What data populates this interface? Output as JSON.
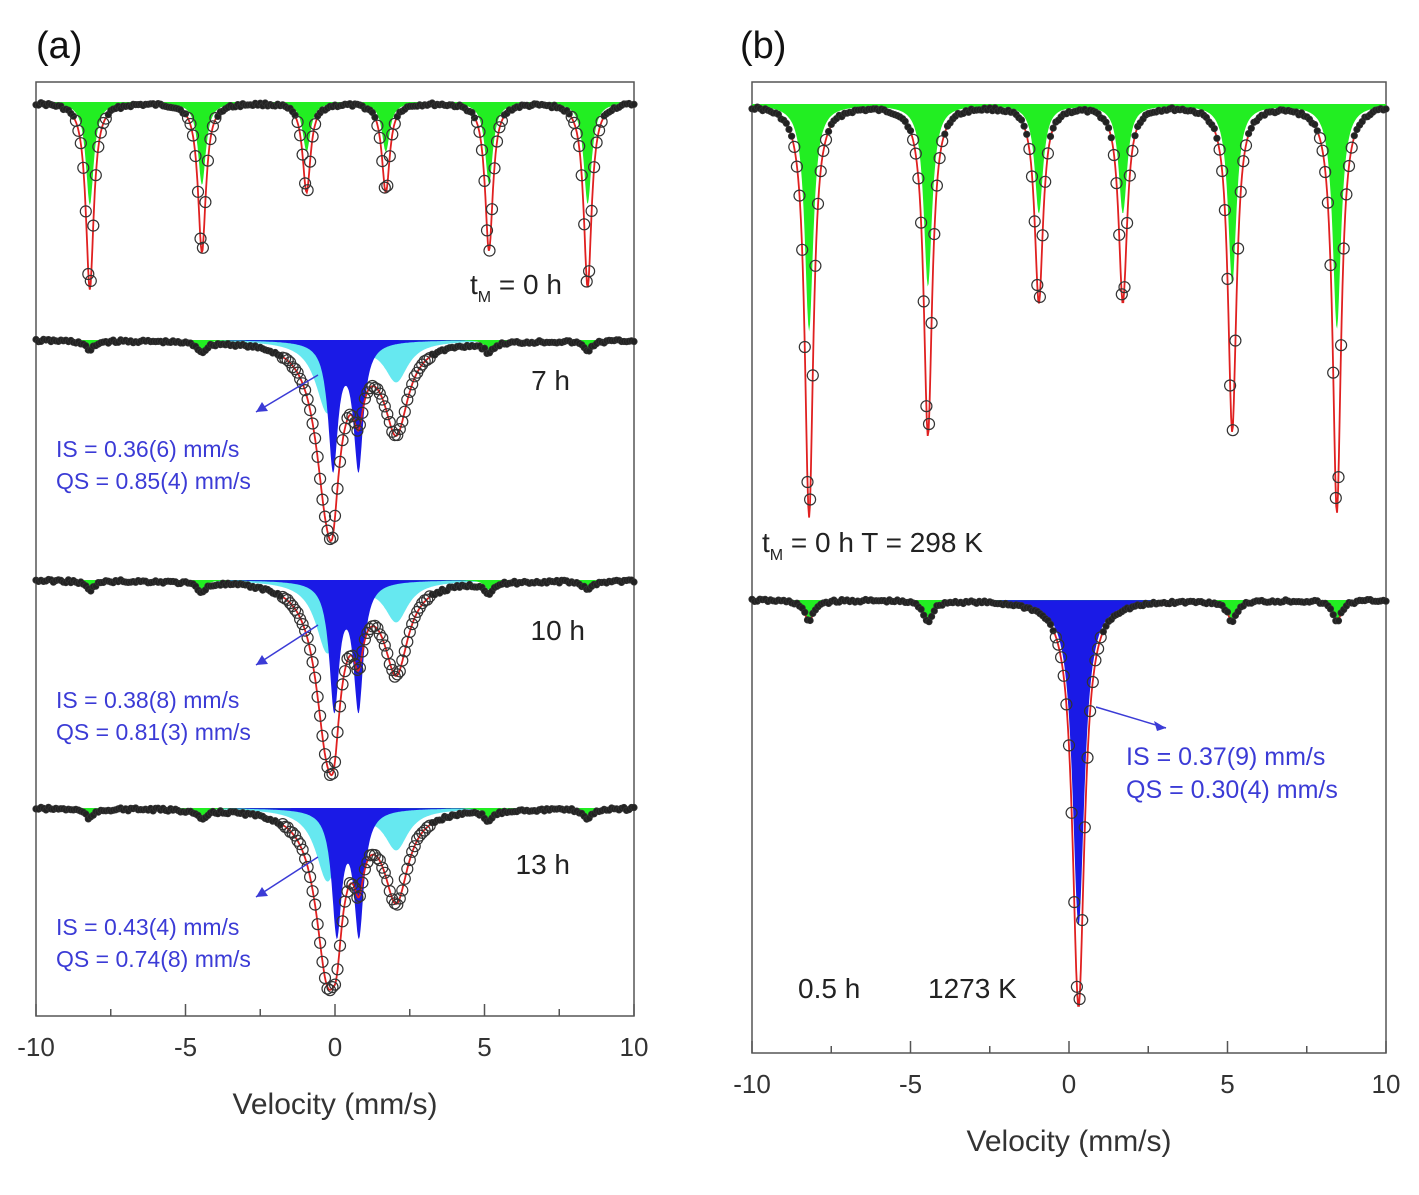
{
  "chart_data": [
    {
      "type": "line",
      "panel_label": "(a)",
      "xlabel": "Velocity (mm/s)",
      "xlim": [
        -10,
        10
      ],
      "xticks": [
        "-10",
        "-5",
        "0",
        "5",
        "10"
      ],
      "colors": {
        "frame": "#555555",
        "sextet_fill": "#22ee22",
        "outer_doublet_fill": "#66e8f0",
        "inner_doublet_fill": "#1a1ae6",
        "fit_line": "#e02020",
        "data_points": "#333333",
        "annotation": "#3b3bd6"
      },
      "spectra": [
        {
          "label": "t",
          "label_sub": "M",
          "label_rest": " = 0 h",
          "component": "sextet",
          "line_positions": [
            -8.2,
            -4.45,
            -0.95,
            1.7,
            5.15,
            8.45
          ],
          "line_depths": [
            0.96,
            0.77,
            0.46,
            0.46,
            0.76,
            0.95
          ],
          "line_width": 0.32
        },
        {
          "label": "7 h",
          "component": "doublets",
          "sextet_residual": [
            -8.2,
            -4.45,
            5.15,
            8.45
          ],
          "outer_doublet": {
            "centre": 0.9,
            "splitting": 2.3,
            "depths": [
              0.82,
              0.45
            ],
            "width": 0.95
          },
          "inner_doublet": {
            "centre": 0.36,
            "splitting": 0.85,
            "depths": [
              0.72,
              0.72
            ],
            "width": 0.4
          },
          "IS": "IS = 0.36(6) mm/s",
          "QS": "QS = 0.85(4) mm/s"
        },
        {
          "label": "10 h",
          "component": "doublets",
          "sextet_residual": [
            -8.2,
            -4.45,
            5.15,
            8.45
          ],
          "outer_doublet": {
            "centre": 0.9,
            "splitting": 2.3,
            "depths": [
              0.82,
              0.45
            ],
            "width": 0.95
          },
          "inner_doublet": {
            "centre": 0.38,
            "splitting": 0.81,
            "depths": [
              0.72,
              0.72
            ],
            "width": 0.4
          },
          "IS": "IS = 0.38(8) mm/s",
          "QS": "QS = 0.81(3) mm/s"
        },
        {
          "label": "13 h",
          "component": "doublets",
          "sextet_residual": [
            -8.2,
            -4.45,
            5.15,
            8.45
          ],
          "outer_doublet": {
            "centre": 0.9,
            "splitting": 2.3,
            "depths": [
              0.82,
              0.45
            ],
            "width": 0.95
          },
          "inner_doublet": {
            "centre": 0.43,
            "splitting": 0.74,
            "depths": [
              0.7,
              0.7
            ],
            "width": 0.4
          },
          "IS": "IS = 0.43(4) mm/s",
          "QS": "QS = 0.74(8) mm/s"
        }
      ]
    },
    {
      "type": "line",
      "panel_label": "(b)",
      "xlabel": "Velocity (mm/s)",
      "xlim": [
        -10,
        10
      ],
      "xticks": [
        "-10",
        "-5",
        "0",
        "5",
        "10"
      ],
      "colors": {
        "frame": "#555555",
        "sextet_fill": "#22ee22",
        "inner_doublet_fill": "#1a1ae6",
        "fit_line": "#e02020",
        "data_points": "#333333",
        "annotation": "#3b3bd6"
      },
      "spectra": [
        {
          "label": "t",
          "label_sub": "M",
          "label_rest": " = 0 h  T = 298 K",
          "component": "sextet",
          "line_positions": [
            -8.2,
            -4.45,
            -0.95,
            1.7,
            5.15,
            8.45
          ],
          "line_depths": [
            0.96,
            0.77,
            0.46,
            0.46,
            0.76,
            0.95
          ],
          "line_width": 0.32
        },
        {
          "label": "0.5 h",
          "label_temp": "1273 K",
          "component": "singlet",
          "sextet_residual": [
            -8.2,
            -4.45,
            5.15,
            8.45
          ],
          "centre": 0.3,
          "depth": 0.97,
          "width": 0.45,
          "IS": "IS = 0.37(9) mm/s",
          "QS": "QS = 0.30(4) mm/s"
        }
      ]
    }
  ]
}
